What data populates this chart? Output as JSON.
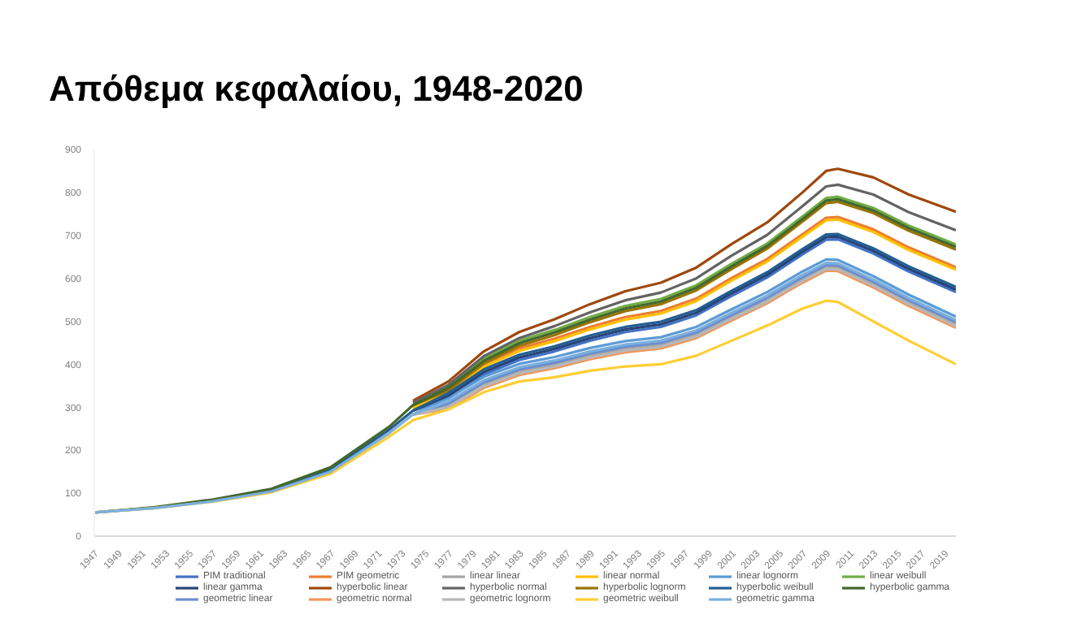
{
  "chart_data": {
    "type": "line",
    "title": "Απόθεμα κεφαλαίου, 1948-2020",
    "x": [
      1947,
      1952,
      1957,
      1962,
      1967,
      1972,
      1974,
      1977,
      1980,
      1983,
      1986,
      1989,
      1992,
      1995,
      1998,
      2001,
      2004,
      2007,
      2009,
      2010,
      2013,
      2016,
      2020
    ],
    "xlim": [
      1947,
      2020
    ],
    "xticks": [
      1947,
      1949,
      1951,
      1953,
      1955,
      1957,
      1959,
      1961,
      1963,
      1965,
      1967,
      1969,
      1971,
      1973,
      1975,
      1977,
      1979,
      1981,
      1983,
      1985,
      1987,
      1989,
      1991,
      1993,
      1995,
      1997,
      1999,
      2001,
      2003,
      2005,
      2007,
      2009,
      2011,
      2013,
      2015,
      2017,
      2019
    ],
    "ylim": [
      0,
      900
    ],
    "yticks": [
      0,
      100,
      200,
      300,
      400,
      500,
      600,
      700,
      800,
      900
    ],
    "grid": false,
    "legend": "bottom",
    "marker": "none",
    "line_style": "solid",
    "series": [
      {
        "name": "PIM traditional",
        "color": "#4472c4",
        "values": [
          null,
          null,
          null,
          null,
          null,
          null,
          292,
          321,
          376,
          410,
          430,
          455,
          475,
          487,
          514,
          559,
          602,
          656,
          690,
          691,
          658,
          616,
          568
        ]
      },
      {
        "name": "PIM geometric",
        "color": "#ed7d31",
        "values": [
          null,
          null,
          null,
          null,
          null,
          null,
          298,
          341,
          400,
          437,
          460,
          487,
          510,
          524,
          553,
          601,
          645,
          703,
          741,
          743,
          714,
          672,
          626
        ]
      },
      {
        "name": "linear linear",
        "color": "#a5a5a5",
        "values": [
          null,
          null,
          null,
          null,
          null,
          null,
          283,
          304,
          353,
          383,
          399,
          420,
          436,
          445,
          469,
          510,
          550,
          598,
          626,
          625,
          587,
          544,
          493
        ]
      },
      {
        "name": "linear normal",
        "color": "#ffc000",
        "values": [
          null,
          null,
          null,
          null,
          null,
          null,
          298,
          335,
          394,
          431,
          454,
          481,
          504,
          518,
          547,
          595,
          639,
          697,
          735,
          737,
          708,
          666,
          620
        ]
      },
      {
        "name": "linear lognorm",
        "color": "#5b9bd5",
        "values": [
          null,
          null,
          null,
          null,
          null,
          null,
          283,
          322,
          371,
          401,
          417,
          438,
          454,
          463,
          487,
          528,
          568,
          616,
          644,
          643,
          605,
          562,
          511
        ]
      },
      {
        "name": "linear weibull",
        "color": "#70ad47",
        "values": [
          null,
          null,
          null,
          null,
          null,
          null,
          305,
          351,
          414,
          455,
          480,
          510,
          536,
          552,
          584,
          634,
          681,
          744,
          787,
          790,
          764,
          723,
          679
        ]
      },
      {
        "name": "linear gamma",
        "color": "#264478",
        "values": [
          null,
          null,
          null,
          null,
          null,
          null,
          292,
          327,
          382,
          416,
          436,
          461,
          481,
          493,
          520,
          565,
          608,
          662,
          696,
          697,
          664,
          622,
          574
        ]
      },
      {
        "name": "hyperbolic linear",
        "color": "#9e480e",
        "values": [
          null,
          null,
          null,
          null,
          null,
          null,
          315,
          360,
          430,
          475,
          505,
          540,
          570,
          590,
          625,
          680,
          730,
          800,
          850,
          855,
          835,
          795,
          755
        ]
      },
      {
        "name": "hyperbolic normal",
        "color": "#636363",
        "values": [
          null,
          null,
          null,
          null,
          null,
          null,
          310,
          352,
          419,
          461,
          489,
          521,
          549,
          567,
          600,
          653,
          701,
          768,
          814,
          818,
          795,
          754,
          712
        ]
      },
      {
        "name": "hyperbolic lognorm",
        "color": "#997300",
        "values": [
          null,
          null,
          null,
          null,
          null,
          null,
          305,
          339,
          402,
          443,
          468,
          498,
          524,
          540,
          572,
          622,
          669,
          732,
          775,
          778,
          752,
          711,
          667
        ]
      },
      {
        "name": "hyperbolic weibull",
        "color": "#255e91",
        "values": [
          55,
          66,
          83,
          107,
          155,
          248,
          292,
          333,
          388,
          422,
          442,
          467,
          487,
          499,
          526,
          571,
          614,
          668,
          702,
          703,
          670,
          628,
          580
        ]
      },
      {
        "name": "hyperbolic gamma",
        "color": "#43682b",
        "values": [
          55,
          67,
          85,
          110,
          160,
          255,
          305,
          345,
          408,
          449,
          474,
          504,
          530,
          546,
          578,
          628,
          675,
          738,
          781,
          784,
          758,
          717,
          673
        ]
      },
      {
        "name": "geometric linear",
        "color": "#698ed0",
        "values": [
          null,
          null,
          null,
          null,
          null,
          null,
          283,
          309,
          358,
          388,
          404,
          425,
          441,
          450,
          474,
          515,
          555,
          603,
          631,
          630,
          592,
          549,
          498
        ]
      },
      {
        "name": "geometric normal",
        "color": "#f1975a",
        "values": [
          null,
          null,
          null,
          null,
          null,
          null,
          283,
          296,
          345,
          375,
          391,
          412,
          428,
          437,
          461,
          502,
          542,
          590,
          618,
          617,
          579,
          536,
          485
        ]
      },
      {
        "name": "geometric lognorm",
        "color": "#b7b7b7",
        "values": [
          null,
          null,
          null,
          null,
          null,
          null,
          283,
          300,
          349,
          379,
          395,
          416,
          432,
          441,
          465,
          506,
          546,
          594,
          622,
          621,
          583,
          540,
          489
        ]
      },
      {
        "name": "geometric weibull",
        "color": "#ffcd33",
        "values": [
          55,
          65,
          80,
          102,
          145,
          232,
          270,
          295,
          335,
          360,
          370,
          385,
          395,
          400,
          420,
          455,
          490,
          530,
          548,
          545,
          500,
          455,
          400
        ]
      },
      {
        "name": "geometric gamma",
        "color": "#7cafdd",
        "values": [
          55,
          65,
          81,
          104,
          150,
          240,
          283,
          314,
          363,
          393,
          409,
          430,
          446,
          455,
          479,
          520,
          560,
          608,
          636,
          635,
          597,
          554,
          503
        ]
      }
    ]
  }
}
